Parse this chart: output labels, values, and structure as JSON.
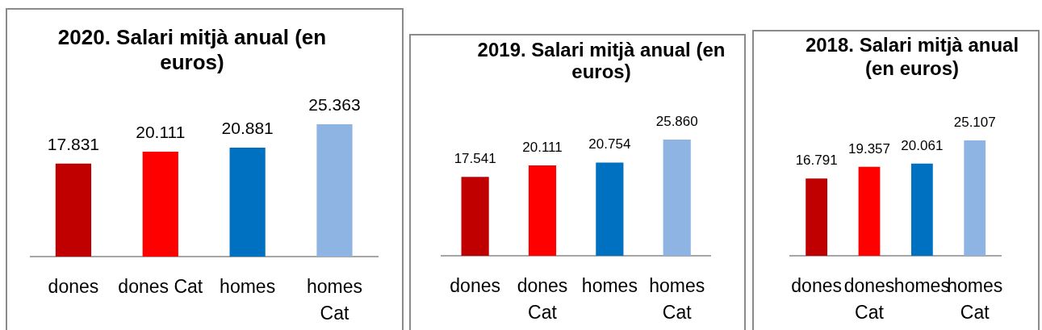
{
  "chart_data": [
    {
      "type": "bar",
      "title": "2020. Salari mitjà anual (en euros)",
      "categories": [
        "dones",
        "dones Cat",
        "homes",
        "homes Cat"
      ],
      "values": [
        17831,
        20111,
        20881,
        25363
      ],
      "colors": [
        "#c00000",
        "#ff0000",
        "#0070c0",
        "#8db4e2"
      ],
      "value_labels": [
        "17.831",
        "20.111",
        "20.881",
        "25.363"
      ]
    },
    {
      "type": "bar",
      "title": "2019. Salari mitjà anual (en euros)",
      "categories": [
        "dones",
        "dones Cat",
        "homes",
        "homes Cat"
      ],
      "values": [
        17541,
        20111,
        20754,
        25860
      ],
      "colors": [
        "#c00000",
        "#ff0000",
        "#0070c0",
        "#8db4e2"
      ],
      "value_labels": [
        "17.541",
        "20.111",
        "20.754",
        "25.860"
      ]
    },
    {
      "type": "bar",
      "title": "2018. Salari mitjà anual (en euros)",
      "categories": [
        "dones",
        "dones Cat",
        "homes",
        "homes Cat"
      ],
      "values": [
        16791,
        19357,
        20061,
        25107
      ],
      "colors": [
        "#c00000",
        "#ff0000",
        "#0070c0",
        "#8db4e2"
      ],
      "value_labels": [
        "16.791",
        "19.357",
        "20.061",
        "25.107"
      ]
    }
  ]
}
